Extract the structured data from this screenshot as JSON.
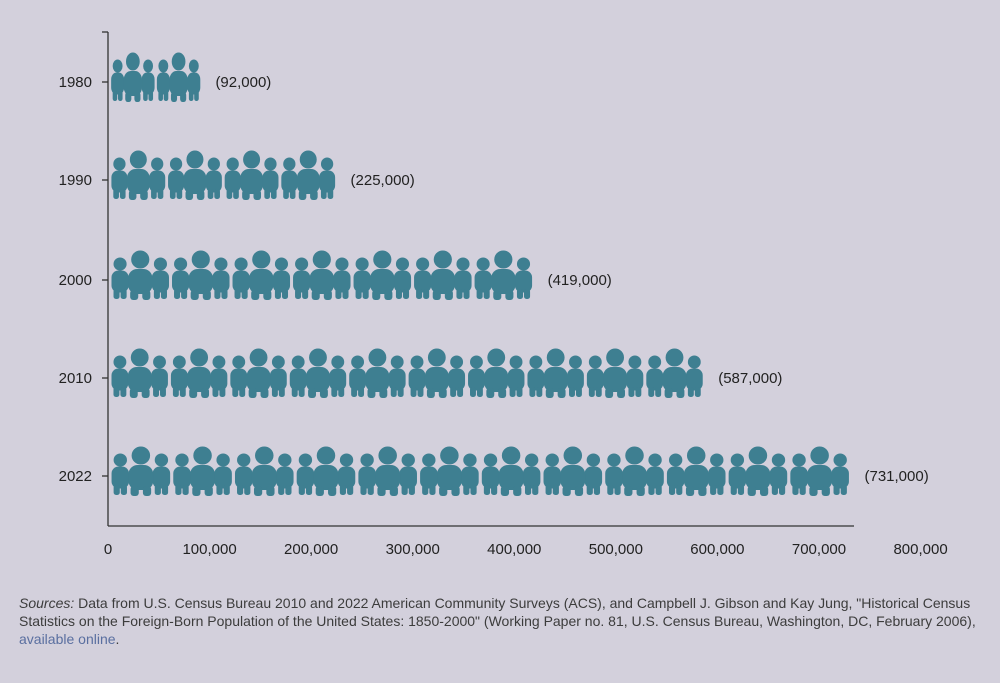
{
  "chart_data": {
    "type": "bar",
    "categories": [
      "1980",
      "1990",
      "2000",
      "2010",
      "2022"
    ],
    "values": [
      92000,
      225000,
      419000,
      587000,
      731000
    ],
    "data_labels": [
      "(92,000)",
      "(225,000)",
      "(419,000)",
      "(587,000)",
      "(731,000)"
    ],
    "xlim": [
      0,
      800000
    ],
    "x_ticks": [
      0,
      100000,
      200000,
      300000,
      400000,
      500000,
      600000,
      700000,
      800000
    ],
    "x_tick_labels": [
      "0",
      "100,000",
      "200,000",
      "300,000",
      "400,000",
      "500,000",
      "600,000",
      "700,000",
      "800,000"
    ],
    "orientation": "horizontal",
    "mark": "person-group-pictogram",
    "grid": false,
    "color": "#3e7f91"
  },
  "source": {
    "prefix": "Sources:",
    "text": " Data from U.S. Census Bureau 2010 and 2022 American Community Surveys (ACS), and Campbell J. Gibson and Kay Jung, \"Historical Census Statistics on the Foreign-Born Population of the United States: 1850-2000\" (Working Paper no. 81, U.S. Census Bureau, Washington, DC, February 2006), ",
    "link_text": "available online",
    "suffix": "."
  }
}
